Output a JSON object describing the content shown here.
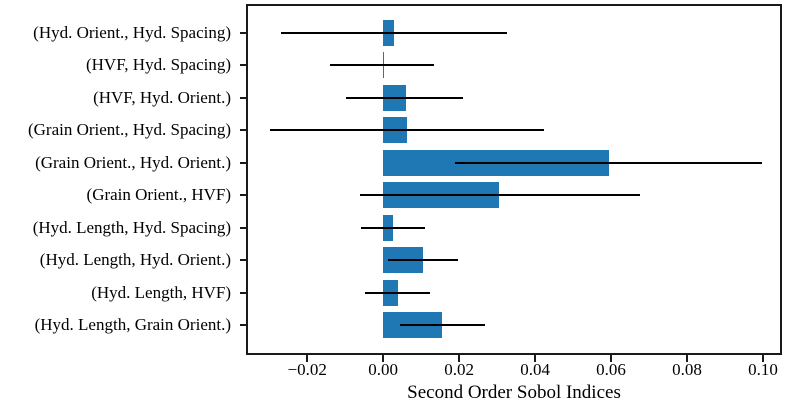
{
  "chart_data": {
    "type": "bar",
    "orientation": "horizontal",
    "title": "",
    "xlabel": "Second Order Sobol Indices",
    "ylabel": "",
    "categories": [
      "(Hyd. Orient., Hyd. Spacing)",
      "(HVF, Hyd. Spacing)",
      "(HVF, Hyd. Orient.)",
      "(Grain Orient., Hyd. Spacing)",
      "(Grain Orient., Hyd. Orient.)",
      "(Grain Orient., HVF)",
      "(Hyd. Length, Hyd. Spacing)",
      "(Hyd. Length, Hyd. Orient.)",
      "(Hyd. Length, HVF)",
      "(Hyd. Length, Grain Orient.)"
    ],
    "values": [
      0.0029,
      0.0002,
      0.0059,
      0.0062,
      0.0595,
      0.0306,
      0.0026,
      0.0106,
      0.0038,
      0.0154
    ],
    "error_low": [
      -0.0268,
      -0.0139,
      -0.0099,
      -0.0297,
      0.0189,
      -0.0062,
      -0.0059,
      0.0014,
      -0.0047,
      0.0045
    ],
    "error_high": [
      0.0327,
      0.0135,
      0.0211,
      0.0424,
      0.0997,
      0.0676,
      0.0111,
      0.0198,
      0.0124,
      0.0267
    ],
    "x_ticks": [
      -0.02,
      0.0,
      0.02,
      0.04,
      0.06,
      0.08,
      0.1
    ],
    "x_tick_labels": [
      "−0.02",
      "0.00",
      "0.02",
      "0.04",
      "0.06",
      "0.08",
      "0.10"
    ],
    "xlim": [
      -0.0361,
      0.105
    ],
    "grid": false,
    "legend": false,
    "bar_color": "#1f77b4",
    "error_color": "#000000",
    "spine_color": "#1a1a1a"
  }
}
